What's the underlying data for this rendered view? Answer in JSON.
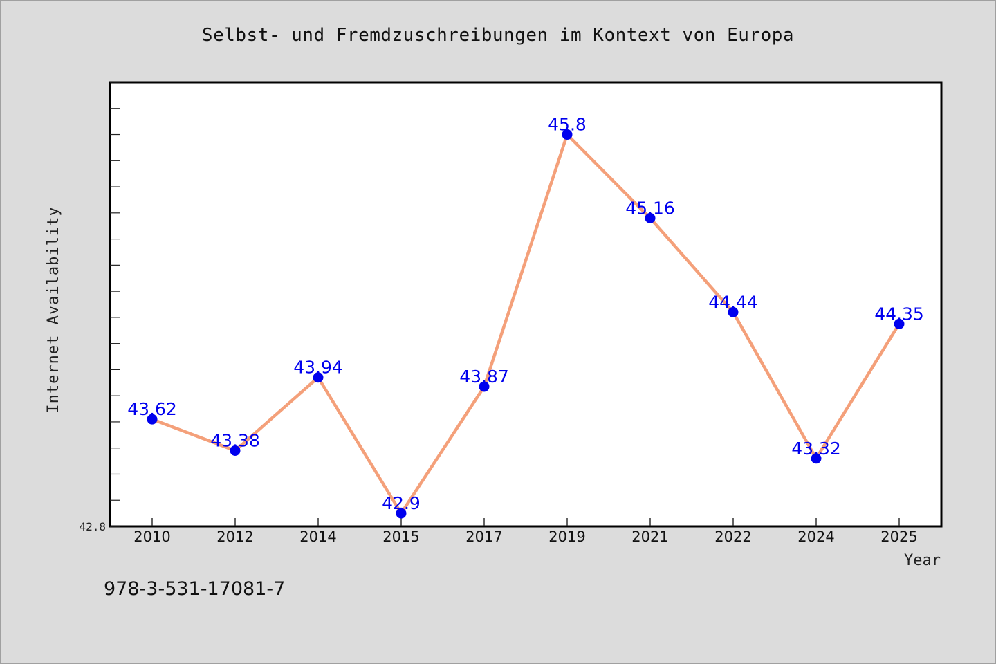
{
  "chart_data": {
    "type": "line",
    "title": "Selbst- und Fremdzuschreibungen im Kontext von Europa",
    "xlabel": "Year",
    "ylabel": "Internet Availability",
    "categories": [
      "2010",
      "2012",
      "2014",
      "2015",
      "2017",
      "2019",
      "2021",
      "2022",
      "2024",
      "2025"
    ],
    "values": [
      43.62,
      43.38,
      43.94,
      42.9,
      43.87,
      45.8,
      45.16,
      44.44,
      43.32,
      44.35
    ],
    "data_labels": [
      "43.62",
      "43.38",
      "43.94",
      "42.9",
      "43.87",
      "45.8",
      "45.16",
      "44.44",
      "43.32",
      "44.35"
    ],
    "ylim": [
      42.8,
      46.2
    ],
    "y_tick_label": "42.8",
    "grid": false,
    "legend": "none",
    "colors": {
      "line": "#f4a07a",
      "marker": "#0000ee",
      "label": "#0000ee"
    }
  },
  "footer": {
    "isbn": "978-3-531-17081-7"
  }
}
